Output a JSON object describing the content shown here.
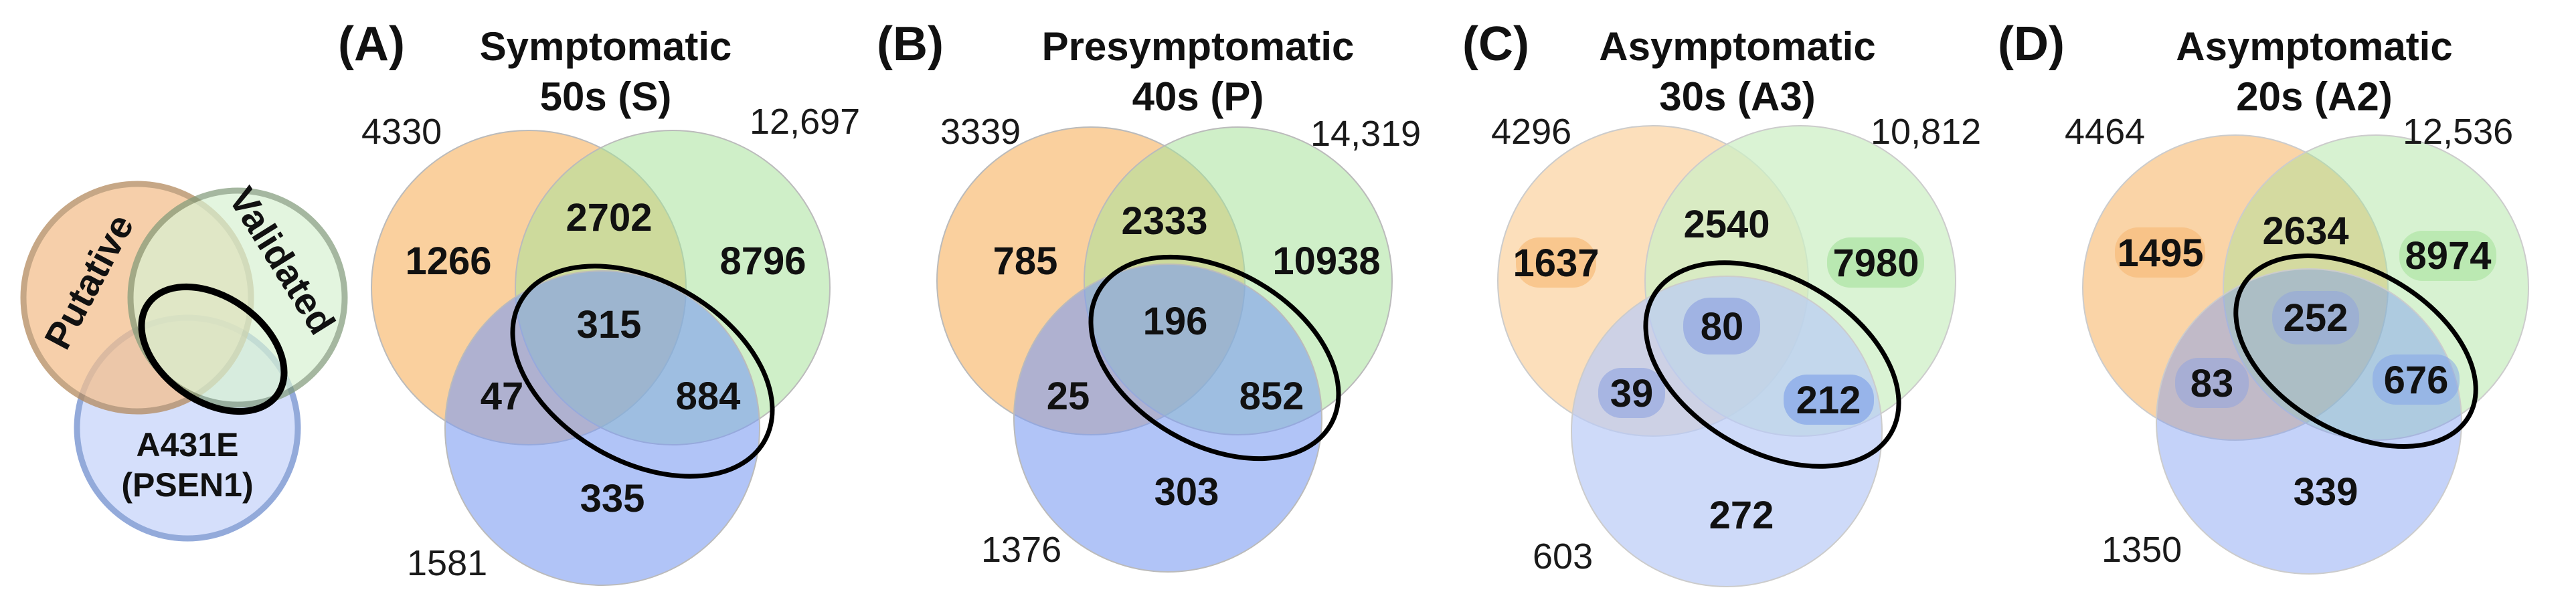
{
  "legend": {
    "circles": [
      {
        "name": "Putative",
        "color": "#f4c08e",
        "stroke": "#b48a5e"
      },
      {
        "name": "Validated",
        "color": "#d8f2d2",
        "stroke": "#7f9a78"
      },
      {
        "name": "A431E (PSEN1)",
        "color": "#d3defb",
        "stroke": "#8ea6d9"
      }
    ],
    "putative_label": "Putative",
    "validated_label": "Validated",
    "a431e_line1": "A431E",
    "a431e_line2": "(PSEN1)"
  },
  "colors": {
    "orange_full": "#f6a94f",
    "green_full": "#a7e29a",
    "blue_full": "#7d9cf1",
    "outline": "#000000"
  },
  "panels": [
    {
      "letter": "(A)",
      "title_line1": "Symptomatic",
      "title_line2": "50s (S)",
      "totals": {
        "putative": "4330",
        "validated": "12,697",
        "a431e": "1581"
      },
      "regions": {
        "putative_only": "1266",
        "putative_validated": "2702",
        "validated_only": "8796",
        "all_three": "315",
        "putative_a431e": "47",
        "validated_a431e": "884",
        "a431e_only": "335"
      },
      "faded": false
    },
    {
      "letter": "(B)",
      "title_line1": "Presymptomatic",
      "title_line2": "40s  (P)",
      "totals": {
        "putative": "3339",
        "validated": "14,319",
        "a431e": "1376"
      },
      "regions": {
        "putative_only": "785",
        "putative_validated": "2333",
        "validated_only": "10938",
        "all_three": "196",
        "putative_a431e": "25",
        "validated_a431e": "852",
        "a431e_only": "303"
      },
      "faded": false
    },
    {
      "letter": "(C)",
      "title_line1": "Asymptomatic",
      "title_line2": "30s (A3)",
      "totals": {
        "putative": "4296",
        "validated": "10,812",
        "a431e": "603"
      },
      "regions": {
        "putative_only": "1637",
        "putative_validated": "2540",
        "validated_only": "7980",
        "all_three": "80",
        "putative_a431e": "39",
        "validated_a431e": "212",
        "a431e_only": "272"
      },
      "faded": true
    },
    {
      "letter": "(D)",
      "title_line1": "Asymptomatic",
      "title_line2": "20s (A2)",
      "totals": {
        "putative": "4464",
        "validated": "12,536",
        "a431e": "1350"
      },
      "regions": {
        "putative_only": "1495",
        "putative_validated": "2634",
        "validated_only": "8974",
        "all_three": "252",
        "putative_a431e": "83",
        "validated_a431e": "676",
        "a431e_only": "339"
      },
      "faded": false
    }
  ]
}
